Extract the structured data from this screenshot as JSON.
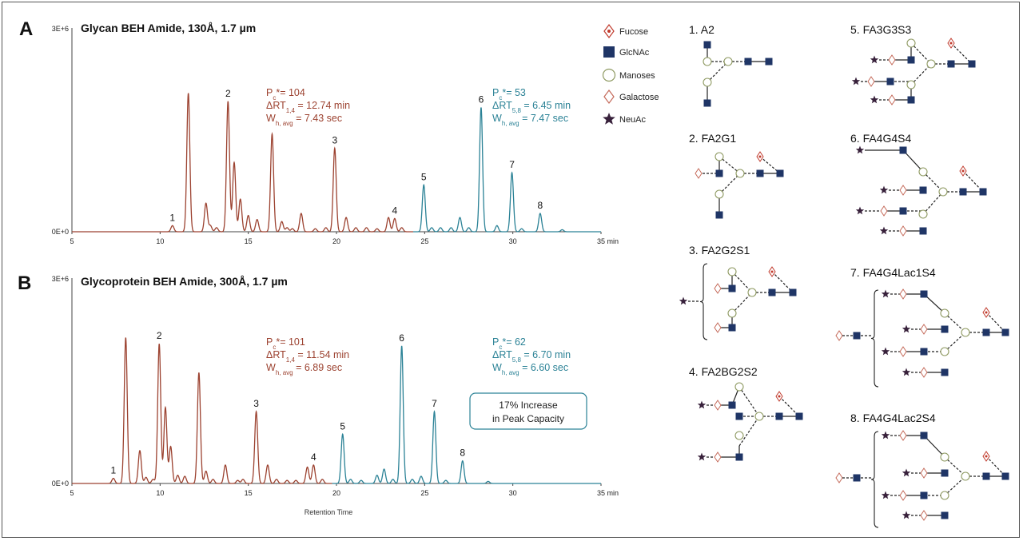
{
  "colors": {
    "brown": "#9c4230",
    "teal": "#2b8296",
    "navy": "#1f3566",
    "fucose": "#c0392b",
    "mannose_stroke": "#8f9a62",
    "galactose": "#c56a5a",
    "neuac": "#38213b",
    "box_border": "#2b8296"
  },
  "legend": {
    "fucose": "Fucose",
    "glcnac": "GlcNAc",
    "mannose": "Manoses",
    "galactose": "Galactose",
    "neuac": "NeuAc"
  },
  "axis_title": "Retention Time",
  "chart_data": [
    {
      "type": "line",
      "panel": "A",
      "title": "Glycan BEH Amide, 130Å, 1.7 µm",
      "xlabel": "Retention Time",
      "x_unit": "min",
      "xlim": [
        5,
        35
      ],
      "xticks": [
        5,
        10,
        15,
        20,
        25,
        30,
        35
      ],
      "ylim": [
        0,
        3000000
      ],
      "ytick_labels": [
        "0E+0",
        "3E+6"
      ],
      "series": [
        {
          "name": "early",
          "color": "brown",
          "peaks": [
            {
              "x": 10.7,
              "y": 0.03
            },
            {
              "x": 11.6,
              "y": 0.68
            },
            {
              "x": 12.6,
              "y": 0.14
            },
            {
              "x": 12.85,
              "y": 0.03
            },
            {
              "x": 13.2,
              "y": 0.02
            },
            {
              "x": 13.85,
              "y": 0.64
            },
            {
              "x": 14.2,
              "y": 0.34
            },
            {
              "x": 14.55,
              "y": 0.16
            },
            {
              "x": 15.0,
              "y": 0.08
            },
            {
              "x": 15.5,
              "y": 0.06
            },
            {
              "x": 16.35,
              "y": 0.48
            },
            {
              "x": 16.9,
              "y": 0.05
            },
            {
              "x": 17.2,
              "y": 0.02
            },
            {
              "x": 17.5,
              "y": 0.015
            },
            {
              "x": 18.0,
              "y": 0.09
            },
            {
              "x": 18.8,
              "y": 0.015
            },
            {
              "x": 19.4,
              "y": 0.02
            },
            {
              "x": 19.9,
              "y": 0.41
            },
            {
              "x": 20.55,
              "y": 0.07
            },
            {
              "x": 21.1,
              "y": 0.02
            },
            {
              "x": 21.7,
              "y": 0.02
            },
            {
              "x": 22.3,
              "y": 0.015
            },
            {
              "x": 22.95,
              "y": 0.07
            },
            {
              "x": 23.3,
              "y": 0.065
            },
            {
              "x": 23.7,
              "y": 0.02
            }
          ]
        },
        {
          "name": "late",
          "color": "teal",
          "peaks": [
            {
              "x": 24.95,
              "y": 0.23
            },
            {
              "x": 25.4,
              "y": 0.02
            },
            {
              "x": 25.9,
              "y": 0.02
            },
            {
              "x": 26.5,
              "y": 0.02
            },
            {
              "x": 27.0,
              "y": 0.07
            },
            {
              "x": 27.5,
              "y": 0.02
            },
            {
              "x": 28.2,
              "y": 0.61
            },
            {
              "x": 29.1,
              "y": 0.03
            },
            {
              "x": 29.95,
              "y": 0.29
            },
            {
              "x": 30.5,
              "y": 0.015
            },
            {
              "x": 31.55,
              "y": 0.09
            },
            {
              "x": 32.8,
              "y": 0.01
            }
          ]
        }
      ],
      "peak_labels": [
        {
          "label": "1",
          "x": 10.7,
          "y": 0.03
        },
        {
          "label": "2",
          "x": 13.85,
          "y": 0.64
        },
        {
          "label": "3",
          "x": 19.9,
          "y": 0.41
        },
        {
          "label": "4",
          "x": 23.3,
          "y": 0.065
        },
        {
          "label": "5",
          "x": 24.95,
          "y": 0.23
        },
        {
          "label": "6",
          "x": 28.2,
          "y": 0.61
        },
        {
          "label": "7",
          "x": 29.95,
          "y": 0.29
        },
        {
          "label": "8",
          "x": 31.55,
          "y": 0.09
        }
      ],
      "stats_early": {
        "pc": "104",
        "drt_label": "ΔRT",
        "drt_sub": "1,4",
        "drt": "12.74 min",
        "wh_sub": "h, avg",
        "wh": "7.43 sec"
      },
      "stats_late": {
        "pc": "53",
        "drt_label": "ΔRT",
        "drt_sub": "5,8",
        "drt": "6.45 min",
        "wh_sub": "h, avg",
        "wh": "7.47 sec"
      }
    },
    {
      "type": "line",
      "panel": "B",
      "title": "Glycoprotein BEH Amide, 300Å, 1.7 µm",
      "xlabel": "Retention Time",
      "x_unit": "min",
      "xlim": [
        5,
        35
      ],
      "xticks": [
        5,
        10,
        15,
        20,
        25,
        30,
        35
      ],
      "ylim": [
        0,
        3000000
      ],
      "ytick_labels": [
        "0E+0",
        "3E+6"
      ],
      "series": [
        {
          "name": "early",
          "color": "brown",
          "peaks": [
            {
              "x": 7.35,
              "y": 0.025
            },
            {
              "x": 8.05,
              "y": 0.71
            },
            {
              "x": 8.85,
              "y": 0.16
            },
            {
              "x": 9.2,
              "y": 0.03
            },
            {
              "x": 9.6,
              "y": 0.02
            },
            {
              "x": 9.95,
              "y": 0.68
            },
            {
              "x": 10.3,
              "y": 0.37
            },
            {
              "x": 10.6,
              "y": 0.18
            },
            {
              "x": 11.0,
              "y": 0.04
            },
            {
              "x": 11.4,
              "y": 0.035
            },
            {
              "x": 12.2,
              "y": 0.54
            },
            {
              "x": 12.6,
              "y": 0.06
            },
            {
              "x": 13.0,
              "y": 0.02
            },
            {
              "x": 13.7,
              "y": 0.09
            },
            {
              "x": 14.4,
              "y": 0.015
            },
            {
              "x": 14.7,
              "y": 0.02
            },
            {
              "x": 15.45,
              "y": 0.35
            },
            {
              "x": 16.1,
              "y": 0.09
            },
            {
              "x": 16.6,
              "y": 0.02
            },
            {
              "x": 17.2,
              "y": 0.015
            },
            {
              "x": 17.7,
              "y": 0.015
            },
            {
              "x": 18.35,
              "y": 0.08
            },
            {
              "x": 18.7,
              "y": 0.09
            },
            {
              "x": 19.2,
              "y": 0.02
            }
          ]
        },
        {
          "name": "late",
          "color": "teal",
          "peaks": [
            {
              "x": 20.35,
              "y": 0.24
            },
            {
              "x": 20.8,
              "y": 0.02
            },
            {
              "x": 21.4,
              "y": 0.015
            },
            {
              "x": 22.3,
              "y": 0.04
            },
            {
              "x": 22.7,
              "y": 0.07
            },
            {
              "x": 23.2,
              "y": 0.02
            },
            {
              "x": 23.7,
              "y": 0.67
            },
            {
              "x": 24.3,
              "y": 0.02
            },
            {
              "x": 24.8,
              "y": 0.035
            },
            {
              "x": 25.55,
              "y": 0.35
            },
            {
              "x": 26.2,
              "y": 0.015
            },
            {
              "x": 27.15,
              "y": 0.11
            },
            {
              "x": 28.6,
              "y": 0.01
            }
          ]
        }
      ],
      "peak_labels": [
        {
          "label": "1",
          "x": 7.35,
          "y": 0.025
        },
        {
          "label": "2",
          "x": 9.95,
          "y": 0.68
        },
        {
          "label": "3",
          "x": 15.45,
          "y": 0.35
        },
        {
          "label": "4",
          "x": 18.7,
          "y": 0.09
        },
        {
          "label": "5",
          "x": 20.35,
          "y": 0.24
        },
        {
          "label": "6",
          "x": 23.7,
          "y": 0.67
        },
        {
          "label": "7",
          "x": 25.55,
          "y": 0.35
        },
        {
          "label": "8",
          "x": 27.15,
          "y": 0.11
        }
      ],
      "stats_early": {
        "pc": "101",
        "drt_label": "ΔRT",
        "drt_sub": "1,4",
        "drt": "11.54 min",
        "wh_sub": "h, avg",
        "wh": "6.89 sec"
      },
      "stats_late": {
        "pc": "62",
        "drt_label": "ΔRT",
        "drt_sub": "5,8",
        "drt": "6.70 min",
        "wh_sub": "h, avg",
        "wh": "6.60 sec"
      },
      "callout": [
        "17% Increase",
        "in Peak Capacity"
      ]
    }
  ],
  "structures": [
    {
      "label": "1. A2"
    },
    {
      "label": "2. FA2G1"
    },
    {
      "label": "3. FA2G2S1"
    },
    {
      "label": "4. FA2BG2S2"
    },
    {
      "label": "5. FA3G3S3"
    },
    {
      "label": "6. FA4G4S4"
    },
    {
      "label": "7. FA4G4Lac1S4"
    },
    {
      "label": "8. FA4G4Lac2S4"
    }
  ]
}
